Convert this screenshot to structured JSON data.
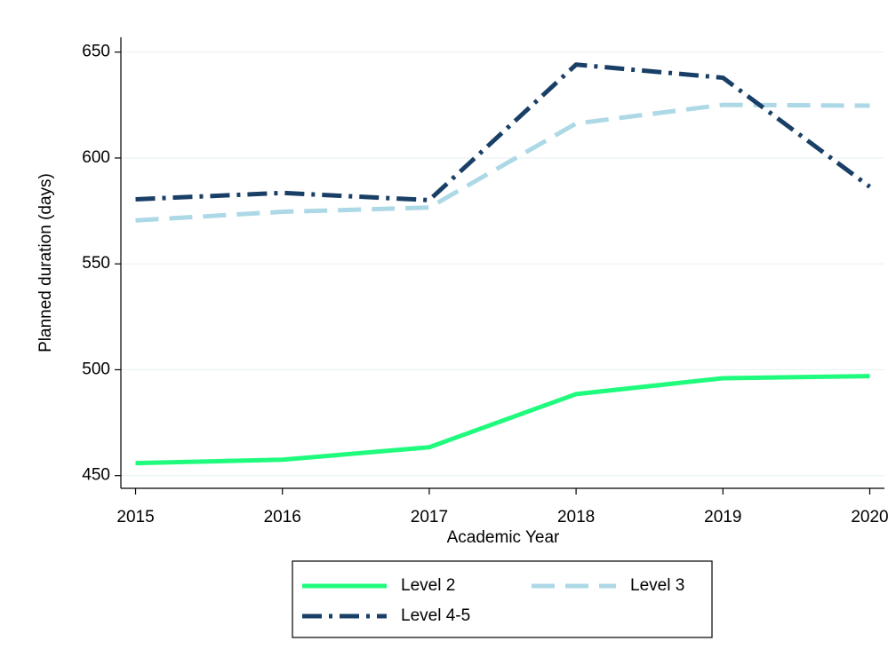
{
  "chart_data": {
    "type": "line",
    "x_label": "Academic Year",
    "y_label": "Planned duration (days)",
    "x": [
      2015,
      2016,
      2017,
      2018,
      2019,
      2020
    ],
    "series": [
      {
        "name": "Level 2",
        "color": "#1ffb7d",
        "dash": "solid",
        "values": [
          455.9,
          457.5,
          463.4,
          488.5,
          496,
          497
        ]
      },
      {
        "name": "Level 3",
        "color": "#add8e6",
        "dash": "dash",
        "values": [
          570.5,
          574.6,
          576.6,
          616.3,
          625.1,
          624.7
        ]
      },
      {
        "name": "Level 4-5",
        "color": "#1a3f66",
        "dash": "dashdot",
        "values": [
          580.5,
          583.5,
          580.1,
          644.1,
          637.9,
          586.4
        ]
      }
    ],
    "xlim": [
      2014.9,
      2020.1
    ],
    "ylim": [
      444,
      657
    ],
    "xticks": [
      2015,
      2016,
      2017,
      2018,
      2019,
      2020
    ],
    "yticks": [
      450,
      500,
      550,
      600,
      650
    ],
    "grid": true,
    "legend": "bottom"
  }
}
